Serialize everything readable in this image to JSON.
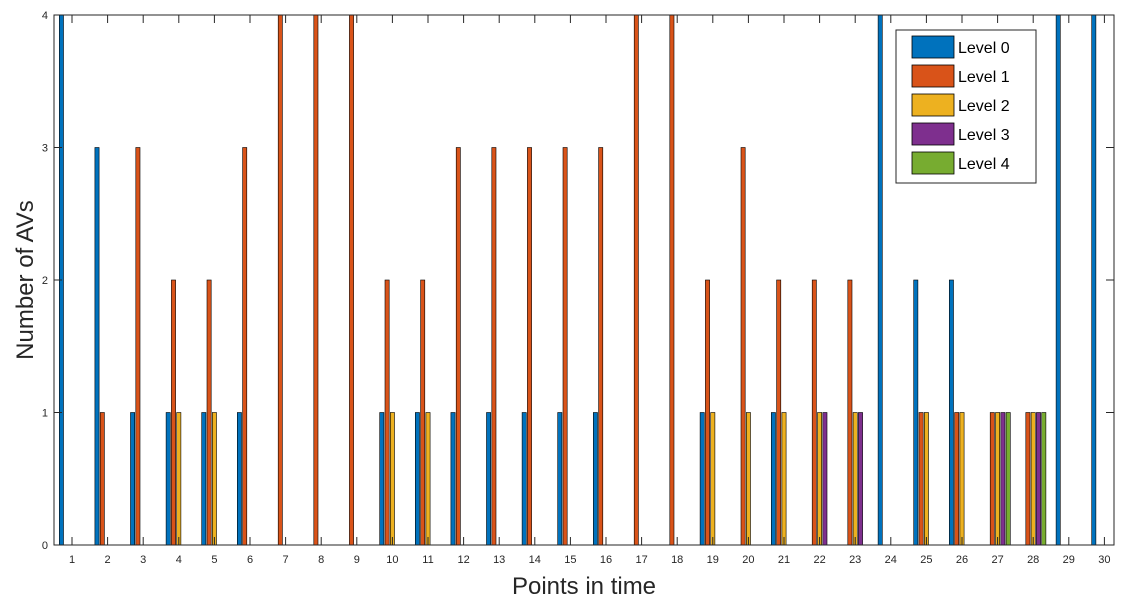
{
  "chart_data": {
    "type": "bar",
    "xlabel": "Points in time",
    "ylabel": "Number of AVs",
    "ylim": [
      0,
      4
    ],
    "yticks": [
      "0",
      "1",
      "2",
      "3",
      "4"
    ],
    "categories": [
      "1",
      "2",
      "3",
      "4",
      "5",
      "6",
      "7",
      "8",
      "9",
      "10",
      "11",
      "12",
      "13",
      "14",
      "15",
      "16",
      "17",
      "18",
      "19",
      "20",
      "21",
      "22",
      "23",
      "24",
      "25",
      "26",
      "27",
      "28",
      "29",
      "30"
    ],
    "legend_position": "top-right",
    "grid": false,
    "series": [
      {
        "name": "Level 0",
        "color": "#0072BD",
        "values": [
          4,
          3,
          1,
          1,
          1,
          1,
          0,
          0,
          0,
          1,
          1,
          1,
          1,
          1,
          1,
          1,
          0,
          0,
          1,
          0,
          1,
          0,
          0,
          4,
          2,
          2,
          0,
          0,
          4,
          4
        ]
      },
      {
        "name": "Level 1",
        "color": "#D95319",
        "values": [
          0,
          1,
          3,
          2,
          2,
          3,
          4,
          4,
          4,
          2,
          2,
          3,
          3,
          3,
          3,
          3,
          4,
          4,
          2,
          3,
          2,
          2,
          2,
          0,
          1,
          1,
          1,
          1,
          0,
          0
        ]
      },
      {
        "name": "Level 2",
        "color": "#EDB120",
        "values": [
          0,
          0,
          0,
          1,
          1,
          0,
          0,
          0,
          0,
          1,
          1,
          0,
          0,
          0,
          0,
          0,
          0,
          0,
          1,
          1,
          1,
          1,
          1,
          0,
          1,
          1,
          1,
          1,
          0,
          0
        ]
      },
      {
        "name": "Level 3",
        "color": "#7E2F8E",
        "values": [
          0,
          0,
          0,
          0,
          0,
          0,
          0,
          0,
          0,
          0,
          0,
          0,
          0,
          0,
          0,
          0,
          0,
          0,
          0,
          0,
          0,
          1,
          1,
          0,
          0,
          0,
          1,
          1,
          0,
          0
        ]
      },
      {
        "name": "Level 4",
        "color": "#77AC30",
        "values": [
          0,
          0,
          0,
          0,
          0,
          0,
          0,
          0,
          0,
          0,
          0,
          0,
          0,
          0,
          0,
          0,
          0,
          0,
          0,
          0,
          0,
          0,
          0,
          0,
          0,
          0,
          1,
          1,
          0,
          0
        ]
      }
    ]
  }
}
